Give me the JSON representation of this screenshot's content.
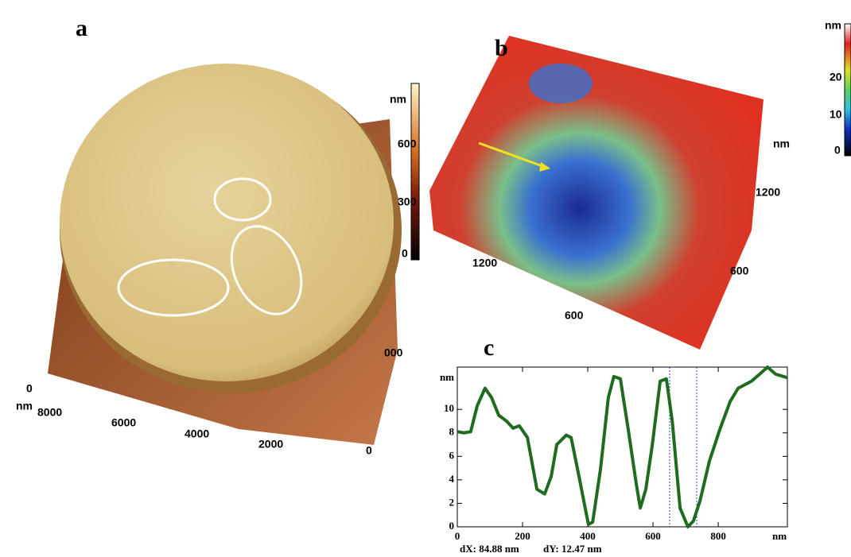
{
  "panels": {
    "a": {
      "letter": "a",
      "colorbar": {
        "unit": "nm",
        "ticks": [
          "600",
          "300",
          "0"
        ]
      },
      "axis_labels": [
        "0",
        "nm",
        "8000",
        "6000",
        "4000",
        "2000",
        "0",
        "000"
      ]
    },
    "b": {
      "letter": "b",
      "colorbar": {
        "unit": "nm",
        "ticks": [
          "20",
          "10",
          "0"
        ]
      },
      "axis_labels": [
        "nm",
        "1200",
        "600",
        "1200",
        "600"
      ]
    },
    "c": {
      "letter": "c",
      "readout": [
        "dX: 84.88 nm",
        "dY: 12.47 nm"
      ]
    }
  },
  "chart_data": {
    "type": "line",
    "y_label": "nm",
    "x_label": "nm",
    "x": [
      0,
      20,
      41,
      61,
      85,
      105,
      127,
      151,
      171,
      190,
      215,
      244,
      268,
      288,
      305,
      334,
      349,
      373,
      402,
      415,
      439,
      463,
      480,
      500,
      524,
      549,
      561,
      578,
      598,
      622,
      641,
      659,
      683,
      707,
      724,
      744,
      773,
      805,
      837,
      861,
      902,
      927,
      951,
      976,
      1012
    ],
    "series": [
      {
        "color": "#1f6b1f",
        "values": [
          8.1,
          8.0,
          8.1,
          10.3,
          11.8,
          11.0,
          9.5,
          9.0,
          8.4,
          8.6,
          7.6,
          3.2,
          2.8,
          4.3,
          7.0,
          7.8,
          7.6,
          4.3,
          0.2,
          0.4,
          4.9,
          11.0,
          12.8,
          12.6,
          8.3,
          3.6,
          1.6,
          3.2,
          7.0,
          12.4,
          12.6,
          9.0,
          1.6,
          0,
          0.5,
          2.2,
          5.6,
          8.3,
          10.7,
          11.8,
          12.4,
          13.0,
          13.6,
          13.0,
          12.7
        ]
      }
    ],
    "cursor_x": [
      651,
      734
    ],
    "xlim": [
      0,
      1012
    ],
    "ylim": [
      0,
      13.6
    ],
    "xticks": [
      0,
      200,
      400,
      600,
      800
    ],
    "yticks": [
      0,
      2,
      4,
      6,
      8,
      10
    ]
  }
}
